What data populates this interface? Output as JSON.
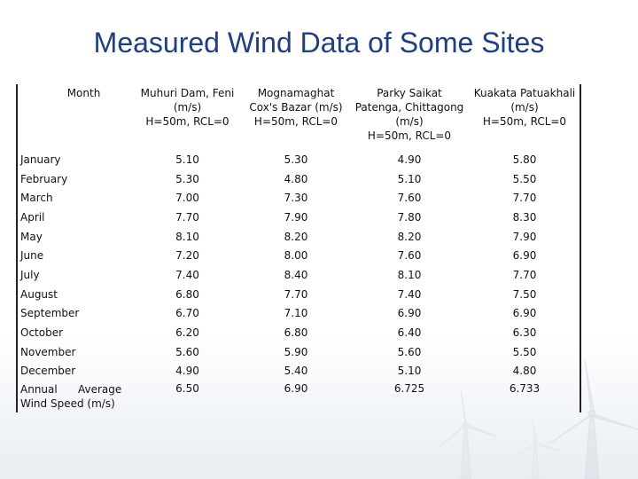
{
  "title": "Measured Wind Data of Some Sites",
  "table": {
    "header": {
      "month": "Month",
      "sites": [
        {
          "lines": [
            "Muhuri Dam, Feni",
            "(m/s)",
            "H=50m, RCL=0"
          ]
        },
        {
          "lines": [
            "Mognamaghat",
            "Cox's Bazar (m/s)",
            "H=50m, RCL=0"
          ]
        },
        {
          "lines": [
            "Parky Saikat",
            "Patenga, Chittagong",
            "(m/s)",
            "H=50m, RCL=0"
          ]
        },
        {
          "lines": [
            "Kuakata Patuakhali",
            "(m/s)",
            "H=50m, RCL=0"
          ]
        }
      ]
    },
    "rows": [
      {
        "month": "January",
        "values": [
          "5.10",
          "5.30",
          "4.90",
          "5.80"
        ]
      },
      {
        "month": "February",
        "values": [
          "5.30",
          "4.80",
          "5.10",
          "5.50"
        ]
      },
      {
        "month": "March",
        "values": [
          "7.00",
          "7.30",
          "7.60",
          "7.70"
        ]
      },
      {
        "month": "April",
        "values": [
          "7.70",
          "7.90",
          "7.80",
          "8.30"
        ]
      },
      {
        "month": "May",
        "values": [
          "8.10",
          "8.20",
          "8.20",
          "7.90"
        ]
      },
      {
        "month": "June",
        "values": [
          "7.20",
          "8.00",
          "7.60",
          "6.90"
        ]
      },
      {
        "month": "July",
        "values": [
          "7.40",
          "8.40",
          "8.10",
          "7.70"
        ]
      },
      {
        "month": "August",
        "values": [
          "6.80",
          "7.70",
          "7.40",
          "7.50"
        ]
      },
      {
        "month": "September",
        "values": [
          "6.70",
          "7.10",
          "6.90",
          "6.90"
        ]
      },
      {
        "month": "October",
        "values": [
          "6.20",
          "6.80",
          "6.40",
          "6.30"
        ]
      },
      {
        "month": "November",
        "values": [
          "5.60",
          "5.90",
          "5.60",
          "5.50"
        ]
      },
      {
        "month": "December",
        "values": [
          "4.90",
          "5.40",
          "5.10",
          "4.80"
        ]
      }
    ],
    "annual": {
      "label_part1": "Annual",
      "label_part2": "Average",
      "label_part3": "Wind Speed (m/s)",
      "values": [
        "6.50",
        "6.90",
        "6.725",
        "6.733"
      ]
    }
  },
  "colors": {
    "title": "#1f3f7f",
    "border": "#222222",
    "text": "#111111"
  }
}
